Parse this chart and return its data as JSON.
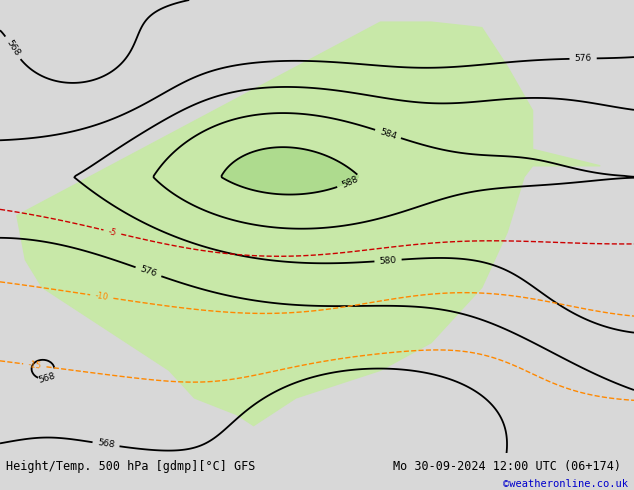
{
  "title_left": "Height/Temp. 500 hPa [gdmp][°C] GFS",
  "title_right": "Mo 30-09-2024 12:00 UTC (06+174)",
  "credit": "©weatheronline.co.uk",
  "bg_color": "#d8d8d8",
  "land_color": "#c8e8a8",
  "land_color_hi": "#a8d888",
  "ocean_color": "#d0d0d0",
  "contour_color_black": "#000000",
  "contour_color_red": "#cc0000",
  "contour_color_orange": "#ff8800",
  "contour_color_magenta": "#cc00cc",
  "contour_color_green": "#228800",
  "figsize": [
    6.34,
    4.9
  ],
  "dpi": 100,
  "bottom_text_color": "#000000",
  "credit_color": "#0000cc",
  "font_size_title": 8.5,
  "font_size_credit": 7.5
}
